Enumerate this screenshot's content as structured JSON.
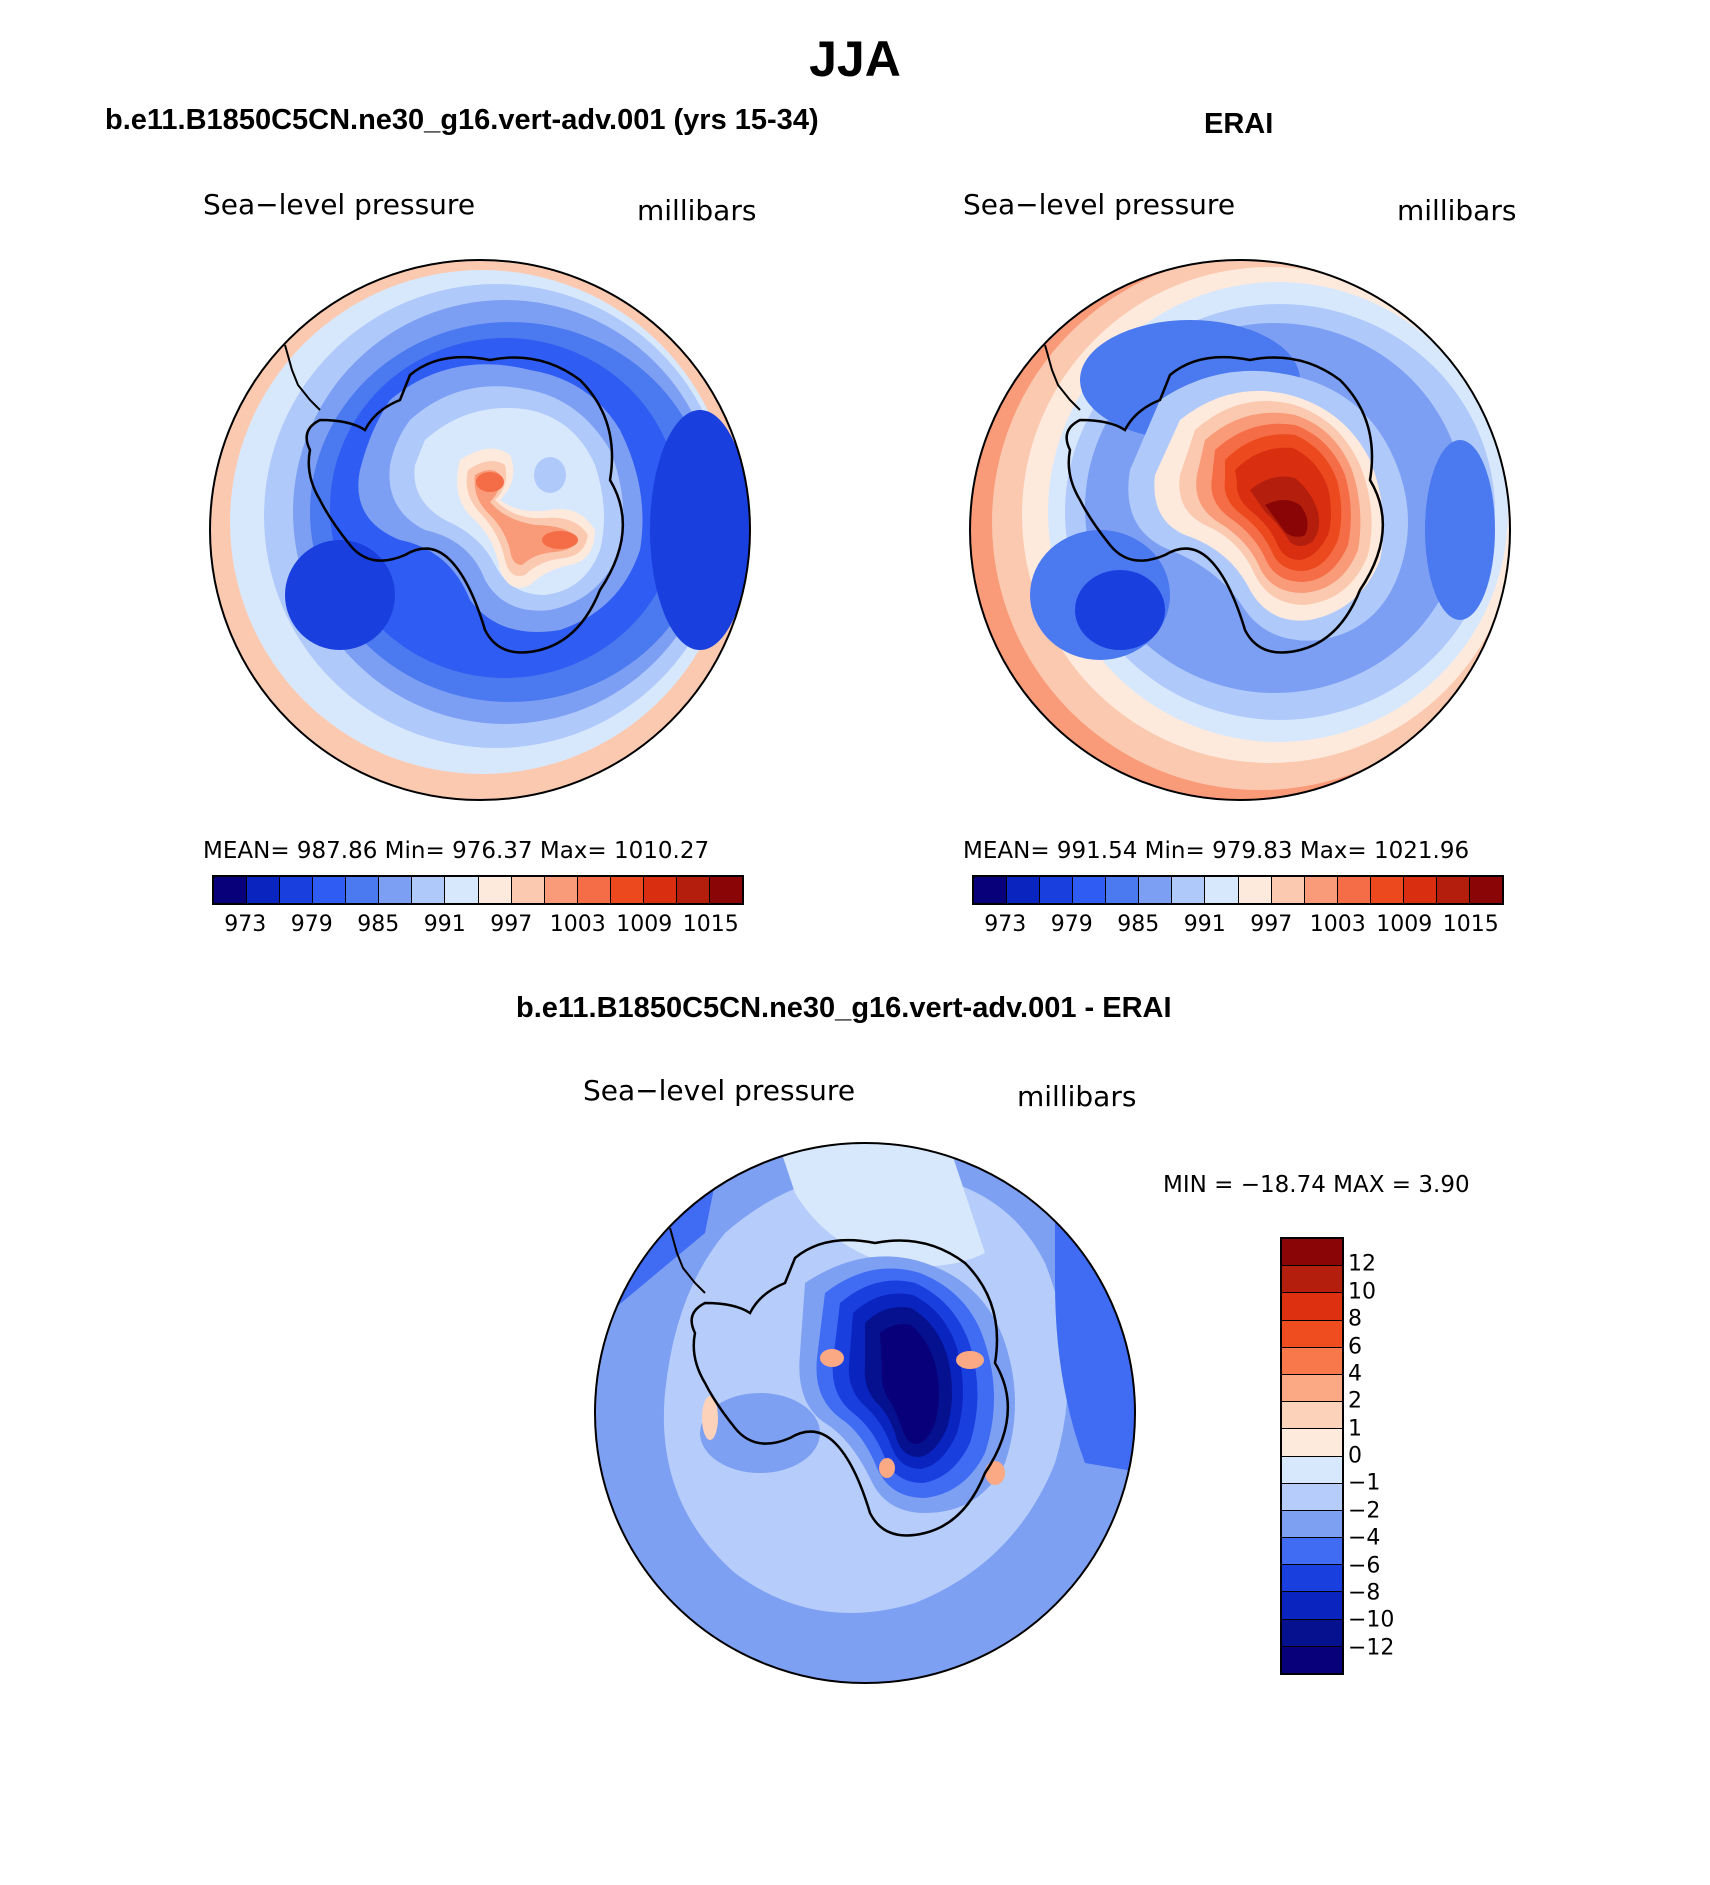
{
  "title": "JJA",
  "panels": [
    {
      "subtitle": "b.e11.B1850C5CN.ne30_g16.vert-adv.001 (yrs 15-34)",
      "variable": "Sea−level pressure",
      "units": "millibars",
      "stats": "MEAN=  987.86   Min=  976.37   Max=  1010.27"
    },
    {
      "subtitle": "ERAI",
      "variable": "Sea−level pressure",
      "units": "millibars",
      "stats": "MEAN=  991.54   Min=  979.83   Max=  1021.96"
    }
  ],
  "diff_panel": {
    "subtitle": "b.e11.B1850C5CN.ne30_g16.vert-adv.001 - ERAI",
    "variable": "Sea−level pressure",
    "units": "millibars",
    "stats": "MIN = −18.74  MAX =    3.90"
  },
  "colorbar_levels": [
    "973",
    "979",
    "985",
    "991",
    "997",
    "1003",
    "1009",
    "1015"
  ],
  "colorbar_colors": [
    "#08007a",
    "#0a24c0",
    "#1a3fdf",
    "#2f5cf2",
    "#4a79f0",
    "#7d9ff3",
    "#b0c9fb",
    "#d8e8fc",
    "#feeadc",
    "#fbc9b0",
    "#f99a78",
    "#f56d46",
    "#ec4a1e",
    "#d92e10",
    "#b41e0c",
    "#8a0505"
  ],
  "diff_levels": [
    "12",
    "10",
    "8",
    "6",
    "4",
    "2",
    "1",
    "0",
    "−1",
    "−2",
    "−4",
    "−6",
    "−8",
    "−10",
    "−12"
  ],
  "diff_colors": [
    "#8a0505",
    "#b41e0c",
    "#dc3010",
    "#ef4d1f",
    "#f8784b",
    "#fba884",
    "#fcd2bb",
    "#feeadc",
    "#d8e8fc",
    "#b6cdfb",
    "#7ea0f3",
    "#3f6cf3",
    "#1a3fdf",
    "#0a24c0",
    "#06118f",
    "#08007a"
  ]
}
